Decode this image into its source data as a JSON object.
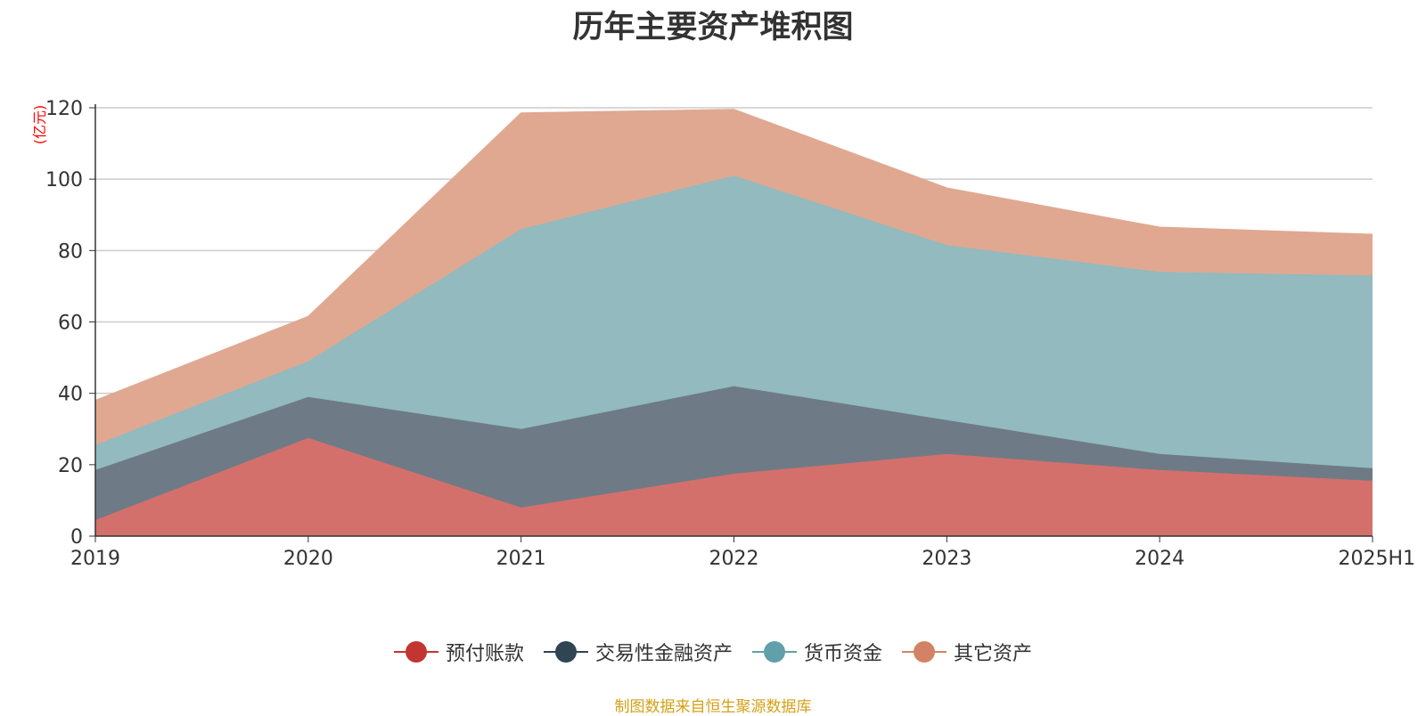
{
  "chart_data": {
    "type": "area",
    "stacked": true,
    "title": "历年主要资产堆积图",
    "ylabel": "(亿元)",
    "xlabel": "",
    "ylim": [
      0,
      120
    ],
    "yticks": [
      0,
      20,
      40,
      60,
      80,
      100,
      120
    ],
    "categories": [
      "2019",
      "2020",
      "2021",
      "2022",
      "2023",
      "2024",
      "2025H1"
    ],
    "series": [
      {
        "name": "预付账款",
        "color": "#c23531",
        "fill": "#d4706c",
        "values": [
          4.5,
          27.5,
          8,
          17.5,
          23,
          18.5,
          15.5
        ]
      },
      {
        "name": "交易性金融资产",
        "color": "#2f4554",
        "fill": "#6e7b86",
        "values": [
          14,
          11.5,
          22,
          24.5,
          9.5,
          4.5,
          3.5
        ]
      },
      {
        "name": "货币资金",
        "color": "#61a0a8",
        "fill": "#92babf",
        "values": [
          7,
          10,
          56,
          59,
          49,
          51,
          54
        ]
      },
      {
        "name": "其它资产",
        "color": "#d48265",
        "fill": "#e0a891",
        "values": [
          12.5,
          12.5,
          32.5,
          18.5,
          16,
          12.5,
          11.5
        ]
      }
    ],
    "legend_position": "bottom-center",
    "grid": true
  },
  "footer": {
    "source": "制图数据来自恒生聚源数据库"
  }
}
